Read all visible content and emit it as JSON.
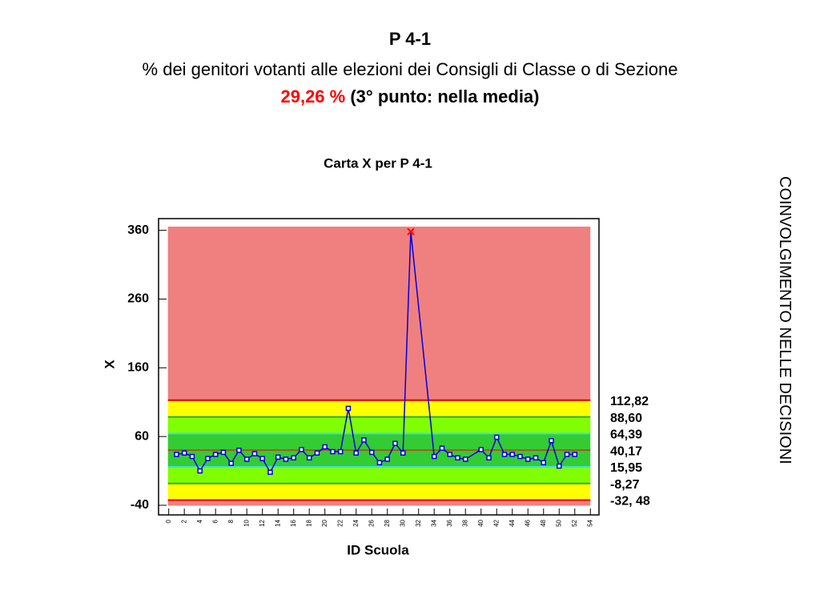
{
  "header": {
    "line1": "P 4-1",
    "line2": "% dei genitori votanti alle elezioni dei Consigli di Classe o di Sezione",
    "score": "29,26 %",
    "score_color": "#ff0000",
    "note": "(3° punto: nella media)"
  },
  "side_label": "COINVOLGIMENTO NELLE DECISIONI",
  "chart_data": {
    "type": "line",
    "title": "Carta X per P 4-1",
    "x_label": "ID Scuola",
    "y_label": "X",
    "x": [
      1,
      2,
      3,
      4,
      5,
      6,
      7,
      8,
      9,
      10,
      11,
      12,
      13,
      14,
      15,
      16,
      17,
      18,
      19,
      20,
      21,
      22,
      23,
      24,
      25,
      26,
      27,
      28,
      29,
      30,
      31,
      34,
      35,
      36,
      37,
      38,
      40,
      41,
      42,
      43,
      44,
      45,
      46,
      47,
      48,
      49,
      50,
      51,
      52
    ],
    "series": [
      {
        "name": "X",
        "color": "#0000dd",
        "values": [
          34,
          36,
          31,
          10,
          28,
          34,
          37,
          21,
          40,
          27,
          35,
          28,
          8,
          30,
          27,
          29,
          41,
          29,
          36,
          45,
          38,
          38,
          101,
          36,
          55,
          37,
          22,
          27,
          50,
          36,
          358,
          31,
          43,
          34,
          29,
          27,
          41,
          29,
          59,
          34,
          34,
          31,
          27,
          29,
          22,
          54,
          17,
          34,
          34
        ]
      }
    ],
    "highlight_color": "#ff0000",
    "xlim": [
      -1.3,
      55.1
    ],
    "xticks": [
      0,
      2,
      4,
      6,
      8,
      10,
      12,
      14,
      16,
      18,
      20,
      22,
      24,
      26,
      28,
      30,
      32,
      34,
      36,
      38,
      40,
      42,
      44,
      46,
      48,
      50,
      52,
      54
    ],
    "ylim": [
      -54,
      377
    ],
    "yticks": [
      360,
      260,
      160,
      60,
      -40
    ],
    "limits": [
      {
        "value": 112.82,
        "label": "112,82",
        "color": "#dd0000"
      },
      {
        "value": 88.6,
        "label": "88,60",
        "color": "#33aa33"
      },
      {
        "value": 64.39,
        "label": "64,39",
        "color": "#40e0d0"
      },
      {
        "value": 40.17,
        "label": "40,17",
        "color": "#aa5522"
      },
      {
        "value": 15.95,
        "label": "15,95",
        "color": "#40e0d0"
      },
      {
        "value": -8.27,
        "label": "-8,27",
        "color": "#33aa33"
      },
      {
        "value": -32.48,
        "label": "-32, 48",
        "color": "#dd0000"
      }
    ],
    "zone_colors": [
      "#f08080",
      "#ffff00",
      "#80ff00",
      "#33cc33",
      "#33cc33",
      "#80ff00",
      "#ffff00",
      "#f08080"
    ]
  }
}
